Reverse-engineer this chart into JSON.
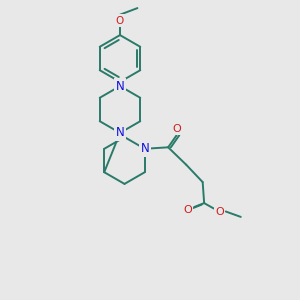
{
  "bg_color": "#e8e8e8",
  "bond_color": "#2a7a6a",
  "N_color": "#1010dd",
  "O_color": "#cc2020",
  "line_width": 1.4,
  "font_size": 7.5,
  "fig_size": [
    3.0,
    3.0
  ],
  "dpi": 100,
  "xlim": [
    0,
    10
  ],
  "ylim": [
    0,
    10
  ]
}
